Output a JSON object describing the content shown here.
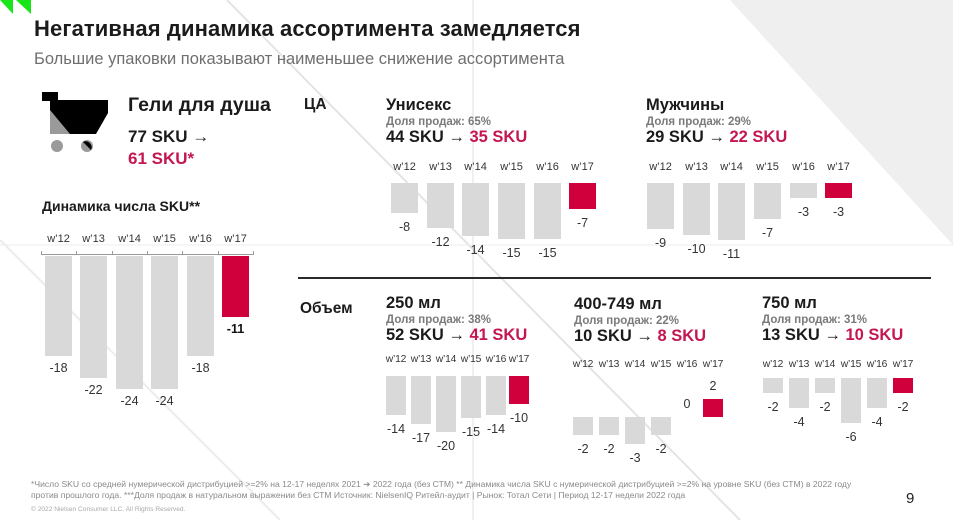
{
  "header": {
    "title": "Негативная динамика ассортимента замедляется",
    "subtitle": "Большие упаковки показывают наименьшее снижение ассортимента"
  },
  "category": {
    "icon": "shopping-cart-icon",
    "name": "Гели для душа",
    "sku_from": "77 SKU →",
    "sku_to": "61 SKU*"
  },
  "sections": {
    "audience_label": "ЦА",
    "volume_label": "Объем"
  },
  "segments": [
    {
      "name": "Унисекс",
      "share": "Доля продаж: 65%",
      "sku_from": "44 SKU",
      "arrow": "→",
      "sku_to": "35 SKU"
    },
    {
      "name": "Мужчины",
      "share": "Доля продаж: 29%",
      "sku_from": "29 SKU",
      "arrow": "→",
      "sku_to": "22 SKU"
    },
    {
      "name": "250 мл",
      "share": "Доля продаж: 38%",
      "sku_from": "52 SKU",
      "arrow": "→",
      "sku_to": "41 SKU"
    },
    {
      "name": "400-749 мл",
      "share": "Доля продаж: 22%",
      "sku_from": "10 SKU",
      "arrow": "→",
      "sku_to": "8 SKU"
    },
    {
      "name": "750 мл",
      "share": "Доля продаж: 31%",
      "sku_from": "13 SKU",
      "arrow": "→",
      "sku_to": "10 SKU"
    }
  ],
  "chart_data": [
    {
      "type": "bar",
      "title": "Динамика числа SKU**",
      "categories": [
        "w’12",
        "w’13",
        "w’14",
        "w’15",
        "w’16",
        "w’17"
      ],
      "values": [
        -18,
        -22,
        -24,
        -24,
        -18,
        -11
      ],
      "highlight_index": 5
    },
    {
      "type": "bar",
      "title": "Унисекс",
      "categories": [
        "w’12",
        "w’13",
        "w’14",
        "w’15",
        "w’16",
        "w’17"
      ],
      "values": [
        -8,
        -12,
        -14,
        -15,
        -15,
        -7
      ],
      "highlight_index": 5
    },
    {
      "type": "bar",
      "title": "Мужчины",
      "categories": [
        "w’12",
        "w’13",
        "w’14",
        "w’15",
        "w’16",
        "w’17"
      ],
      "values": [
        -9,
        -10,
        -11,
        -7,
        -3,
        -3
      ],
      "highlight_index": 5
    },
    {
      "type": "bar",
      "title": "250 мл",
      "categories": [
        "w’12",
        "w’13",
        "w’14",
        "w’15",
        "w’16",
        "w’17"
      ],
      "values": [
        -14,
        -17,
        -20,
        -15,
        -14,
        -10
      ],
      "highlight_index": 5
    },
    {
      "type": "bar",
      "title": "400-749 мл",
      "categories": [
        "w’12",
        "w’13",
        "w’14",
        "w’15",
        "w’16",
        "w’17"
      ],
      "values": [
        -2,
        -2,
        -3,
        -2,
        0,
        2
      ],
      "highlight_index": 5
    },
    {
      "type": "bar",
      "title": "750 мл",
      "categories": [
        "w’12",
        "w’13",
        "w’14",
        "w’15",
        "w’16",
        "w’17"
      ],
      "values": [
        -2,
        -4,
        -2,
        -6,
        -4,
        -2
      ],
      "highlight_index": 5
    }
  ],
  "footer": {
    "line1": "*Число SKU со средней нумерической дистрибуцией >=2% на 12-17 неделях 2021 ➔ 2022 года (без СТМ) ** Динамика числа SKU с нумерической дистрибуцией >=2% на уровне SKU (без СТМ) в 2022 году",
    "line2": "против прошлого года. ***Доля продаж в натуральном выражении без СТМ Источник: NielsenIQ Ритейл-аудит | Рынок: Тотал Сети |   Период 12-17 недели 2022 года",
    "copyright": "© 2022 Nielsen Consumer LLC. All Rights Reserved."
  },
  "page_number": "9",
  "colors": {
    "accent_red": "#d0003d",
    "accent_text_red": "#c4164f",
    "bar_grey": "#d9d9d9",
    "brand_green": "#19e619"
  }
}
